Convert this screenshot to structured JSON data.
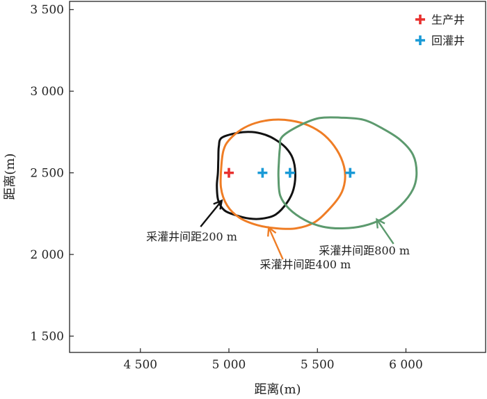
{
  "chart_data": {
    "type": "scatter",
    "xlabel": "距离(m)",
    "ylabel": "距离(m)",
    "xlim": [
      4100,
      6450
    ],
    "ylim": [
      1400,
      3550
    ],
    "x_ticks": [
      4500,
      5000,
      5500,
      6000
    ],
    "y_ticks": [
      1500,
      2000,
      2500,
      3000,
      3500
    ],
    "x_tick_labels": [
      "4 500",
      "5 000",
      "5 500",
      "6 000"
    ],
    "y_tick_labels": [
      "1 500",
      "2 000",
      "2 500",
      "3 000",
      "3 500"
    ],
    "legend": [
      {
        "label": "生产井",
        "color": "#e8302e",
        "marker": "plus"
      },
      {
        "label": "回灌井",
        "color": "#1a9ad6",
        "marker": "plus"
      }
    ],
    "production_well": {
      "x": 5000,
      "y": 2500
    },
    "injection_wells": [
      {
        "x": 5190,
        "y": 2500
      },
      {
        "x": 5345,
        "y": 2500
      },
      {
        "x": 5685,
        "y": 2500
      }
    ],
    "series": [
      {
        "name": "采灌井间距200 m",
        "color": "#111111",
        "label": "采灌井间距200 m",
        "points": [
          [
            4960,
            2715
          ],
          [
            5050,
            2745
          ],
          [
            5130,
            2750
          ],
          [
            5200,
            2735
          ],
          [
            5260,
            2705
          ],
          [
            5320,
            2655
          ],
          [
            5360,
            2590
          ],
          [
            5375,
            2500
          ],
          [
            5365,
            2400
          ],
          [
            5330,
            2320
          ],
          [
            5265,
            2245
          ],
          [
            5190,
            2220
          ],
          [
            5115,
            2220
          ],
          [
            5040,
            2240
          ],
          [
            4975,
            2270
          ],
          [
            4940,
            2330
          ],
          [
            4932,
            2420
          ],
          [
            4938,
            2500
          ],
          [
            4940,
            2580
          ],
          [
            4943,
            2660
          ]
        ]
      },
      {
        "name": "采灌井间距400 m",
        "color": "#ef7d25",
        "label": "采灌井间距400 m",
        "points": [
          [
            5000,
            2700
          ],
          [
            5070,
            2765
          ],
          [
            5150,
            2805
          ],
          [
            5250,
            2825
          ],
          [
            5350,
            2820
          ],
          [
            5450,
            2790
          ],
          [
            5540,
            2730
          ],
          [
            5610,
            2640
          ],
          [
            5650,
            2540
          ],
          [
            5655,
            2450
          ],
          [
            5630,
            2365
          ],
          [
            5560,
            2270
          ],
          [
            5480,
            2195
          ],
          [
            5380,
            2160
          ],
          [
            5270,
            2160
          ],
          [
            5160,
            2180
          ],
          [
            5060,
            2225
          ],
          [
            4990,
            2300
          ],
          [
            4955,
            2410
          ],
          [
            4958,
            2550
          ],
          [
            4970,
            2640
          ]
        ]
      },
      {
        "name": "采灌井间距800 m",
        "color": "#5c9a6e",
        "label": "采灌井间距800 m",
        "points": [
          [
            5300,
            2720
          ],
          [
            5400,
            2790
          ],
          [
            5510,
            2835
          ],
          [
            5630,
            2838
          ],
          [
            5760,
            2825
          ],
          [
            5870,
            2770
          ],
          [
            5970,
            2700
          ],
          [
            6040,
            2610
          ],
          [
            6060,
            2500
          ],
          [
            6040,
            2400
          ],
          [
            5970,
            2300
          ],
          [
            5870,
            2220
          ],
          [
            5760,
            2175
          ],
          [
            5640,
            2160
          ],
          [
            5530,
            2170
          ],
          [
            5430,
            2210
          ],
          [
            5340,
            2280
          ],
          [
            5290,
            2360
          ],
          [
            5280,
            2470
          ],
          [
            5282,
            2560
          ],
          [
            5288,
            2650
          ]
        ]
      }
    ],
    "annotations": [
      {
        "text": "采灌井间距200 m",
        "x": 4790,
        "y": 2085,
        "anchor": "middle",
        "arrow_from": [
          4840,
          2170
        ],
        "arrow_to": [
          4960,
          2330
        ],
        "color": "#111111"
      },
      {
        "text": "采灌井间距400 m",
        "x": 5175,
        "y": 1915,
        "anchor": "start",
        "arrow_from": [
          5305,
          1970
        ],
        "arrow_to": [
          5225,
          2165
        ],
        "color": "#ef7d25"
      },
      {
        "text": "采灌井间距800 m",
        "x": 5765,
        "y": 2000,
        "anchor": "middle",
        "arrow_from": [
          5930,
          2065
        ],
        "arrow_to": [
          5835,
          2215
        ],
        "color": "#5c9a6e"
      }
    ]
  }
}
